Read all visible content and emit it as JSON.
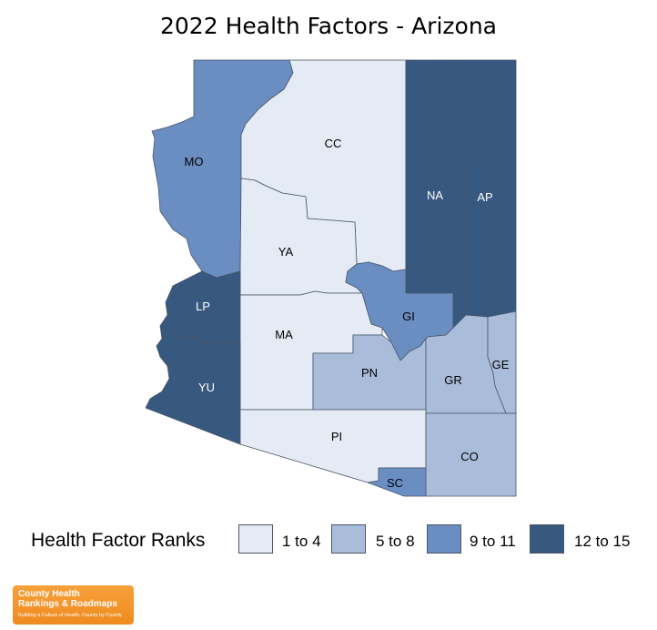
{
  "title": "2022 Health Factors - Arizona",
  "colors": {
    "rank_1_4": "#e4ebf5",
    "rank_5_8": "#a9bddb",
    "rank_9_11": "#6b8ec2",
    "rank_12_15": "#37587f",
    "border": "#4a5568",
    "logo_bg": "#f0912a"
  },
  "legend": {
    "title": "Health Factor Ranks",
    "items": [
      {
        "label": "1 to 4",
        "color": "#e4ebf5"
      },
      {
        "label": "5 to 8",
        "color": "#a9bddb"
      },
      {
        "label": "9 to 11",
        "color": "#6b8ec2"
      },
      {
        "label": "12 to 15",
        "color": "#37587f"
      }
    ]
  },
  "counties": [
    {
      "abbr": "MO",
      "rank_group": "9 to 11"
    },
    {
      "abbr": "CC",
      "rank_group": "1 to 4"
    },
    {
      "abbr": "NA",
      "rank_group": "12 to 15"
    },
    {
      "abbr": "AP",
      "rank_group": "12 to 15"
    },
    {
      "abbr": "YA",
      "rank_group": "1 to 4"
    },
    {
      "abbr": "LP",
      "rank_group": "12 to 15"
    },
    {
      "abbr": "GI",
      "rank_group": "9 to 11"
    },
    {
      "abbr": "MA",
      "rank_group": "1 to 4"
    },
    {
      "abbr": "GE",
      "rank_group": "5 to 8"
    },
    {
      "abbr": "PN",
      "rank_group": "5 to 8"
    },
    {
      "abbr": "GR",
      "rank_group": "5 to 8"
    },
    {
      "abbr": "YU",
      "rank_group": "12 to 15"
    },
    {
      "abbr": "PI",
      "rank_group": "1 to 4"
    },
    {
      "abbr": "CO",
      "rank_group": "5 to 8"
    },
    {
      "abbr": "SC",
      "rank_group": "9 to 11"
    }
  ],
  "logo": {
    "line1": "County Health",
    "line2": "Rankings & Roadmaps",
    "tagline": "Building a Culture of Health, County by County"
  }
}
